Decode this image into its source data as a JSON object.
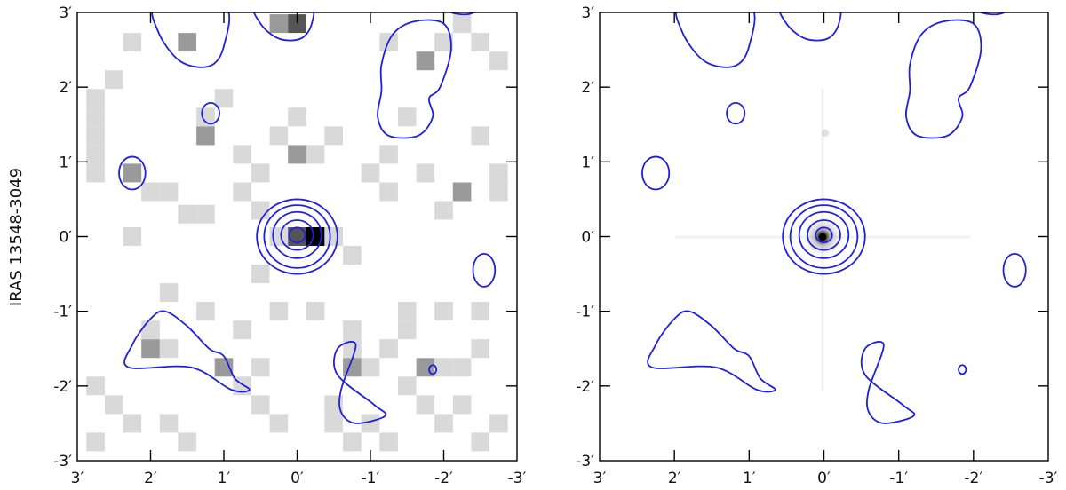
{
  "chart_data": {
    "type": "heatmap",
    "row_label": "IRAS 13548-3049",
    "axis_range_arcmin": [
      3,
      -3
    ],
    "ticks": [
      {
        "value": 3,
        "label": "3′"
      },
      {
        "value": 2,
        "label": "2′"
      },
      {
        "value": 1,
        "label": "1′"
      },
      {
        "value": 0,
        "label": "0′"
      },
      {
        "value": -1,
        "label": "-1′"
      },
      {
        "value": -2,
        "label": "-2′"
      },
      {
        "value": -3,
        "label": "-3′"
      }
    ],
    "contour_color": "#1f1fe0",
    "panels": [
      {
        "name": "left",
        "image": "binned-counts",
        "pixel_size_arcmin": 0.25,
        "pixels": [
          {
            "x": 2.25,
            "y": 2.6,
            "level": 1
          },
          {
            "x": 1.5,
            "y": 2.6,
            "level": 2
          },
          {
            "x": 0.25,
            "y": 2.85,
            "level": 2
          },
          {
            "x": 0.0,
            "y": 2.85,
            "level": 3
          },
          {
            "x": -1.25,
            "y": 2.6,
            "level": 1
          },
          {
            "x": -1.75,
            "y": 2.35,
            "level": 2
          },
          {
            "x": -2.0,
            "y": 2.6,
            "level": 1
          },
          {
            "x": -2.25,
            "y": 2.85,
            "level": 1
          },
          {
            "x": -2.75,
            "y": 2.35,
            "level": 1
          },
          {
            "x": -2.5,
            "y": 2.6,
            "level": 1
          },
          {
            "x": 2.75,
            "y": 1.85,
            "level": 1
          },
          {
            "x": 2.75,
            "y": 1.6,
            "level": 1
          },
          {
            "x": 2.75,
            "y": 1.35,
            "level": 1
          },
          {
            "x": 2.75,
            "y": 1.1,
            "level": 1
          },
          {
            "x": 2.75,
            "y": 0.85,
            "level": 1
          },
          {
            "x": 2.5,
            "y": 2.1,
            "level": 1
          },
          {
            "x": 1.0,
            "y": 1.85,
            "level": 1
          },
          {
            "x": 1.25,
            "y": 1.6,
            "level": 1
          },
          {
            "x": 1.25,
            "y": 1.35,
            "level": 2
          },
          {
            "x": 0.75,
            "y": 1.1,
            "level": 1
          },
          {
            "x": 0.25,
            "y": 1.35,
            "level": 1
          },
          {
            "x": 0.0,
            "y": 1.6,
            "level": 1
          },
          {
            "x": -0.25,
            "y": 1.1,
            "level": 1
          },
          {
            "x": -0.5,
            "y": 1.35,
            "level": 1
          },
          {
            "x": 0.0,
            "y": 1.1,
            "level": 2
          },
          {
            "x": 0.5,
            "y": 0.85,
            "level": 1
          },
          {
            "x": 1.75,
            "y": 0.6,
            "level": 1
          },
          {
            "x": 1.5,
            "y": 0.3,
            "level": 1
          },
          {
            "x": 1.25,
            "y": 0.3,
            "level": 1
          },
          {
            "x": 0.75,
            "y": 0.6,
            "level": 1
          },
          {
            "x": 0.5,
            "y": 0.35,
            "level": 1
          },
          {
            "x": 2.25,
            "y": 0.85,
            "level": 2
          },
          {
            "x": 2.0,
            "y": 0.6,
            "level": 1
          },
          {
            "x": 2.25,
            "y": 0.0,
            "level": 1
          },
          {
            "x": 0.25,
            "y": 0.0,
            "level": 1
          },
          {
            "x": 0.0,
            "y": 0.0,
            "level": 3
          },
          {
            "x": -0.25,
            "y": 0.0,
            "level": 4
          },
          {
            "x": -0.5,
            "y": 0.0,
            "level": 1
          },
          {
            "x": 0.5,
            "y": -0.5,
            "level": 1
          },
          {
            "x": -0.75,
            "y": -0.25,
            "level": 1
          },
          {
            "x": -1.25,
            "y": 0.6,
            "level": 1
          },
          {
            "x": -1.0,
            "y": 0.85,
            "level": 1
          },
          {
            "x": -1.75,
            "y": 0.85,
            "level": 1
          },
          {
            "x": -2.25,
            "y": 0.6,
            "level": 2
          },
          {
            "x": -2.0,
            "y": 0.35,
            "level": 1
          },
          {
            "x": -2.75,
            "y": 0.85,
            "level": 1
          },
          {
            "x": -2.75,
            "y": 0.6,
            "level": 1
          },
          {
            "x": -1.5,
            "y": 1.6,
            "level": 1
          },
          {
            "x": -2.5,
            "y": 1.35,
            "level": 1
          },
          {
            "x": -1.25,
            "y": 1.1,
            "level": 1
          },
          {
            "x": 1.75,
            "y": -0.75,
            "level": 1
          },
          {
            "x": 1.25,
            "y": -1.0,
            "level": 1
          },
          {
            "x": 0.75,
            "y": -1.25,
            "level": 1
          },
          {
            "x": 0.25,
            "y": -1.0,
            "level": 1
          },
          {
            "x": -0.25,
            "y": -1.0,
            "level": 1
          },
          {
            "x": -0.75,
            "y": -1.25,
            "level": 1
          },
          {
            "x": -1.5,
            "y": -1.0,
            "level": 1
          },
          {
            "x": -1.5,
            "y": -1.25,
            "level": 1
          },
          {
            "x": -2.0,
            "y": -1.0,
            "level": 1
          },
          {
            "x": -2.5,
            "y": -1.0,
            "level": 1
          },
          {
            "x": 2.0,
            "y": -1.25,
            "level": 1
          },
          {
            "x": 1.75,
            "y": -1.5,
            "level": 1
          },
          {
            "x": 2.0,
            "y": -1.5,
            "level": 2
          },
          {
            "x": 1.0,
            "y": -1.75,
            "level": 2
          },
          {
            "x": 0.75,
            "y": -2.0,
            "level": 1
          },
          {
            "x": 0.5,
            "y": -1.75,
            "level": 1
          },
          {
            "x": -0.75,
            "y": -1.5,
            "level": 1
          },
          {
            "x": -1.0,
            "y": -1.75,
            "level": 1
          },
          {
            "x": -0.75,
            "y": -1.75,
            "level": 2
          },
          {
            "x": -1.25,
            "y": -1.5,
            "level": 1
          },
          {
            "x": -1.75,
            "y": -1.75,
            "level": 2
          },
          {
            "x": -1.5,
            "y": -2.0,
            "level": 1
          },
          {
            "x": -2.0,
            "y": -1.75,
            "level": 1
          },
          {
            "x": -2.5,
            "y": -1.5,
            "level": 1
          },
          {
            "x": -2.25,
            "y": -1.75,
            "level": 1
          },
          {
            "x": 2.75,
            "y": -2.0,
            "level": 1
          },
          {
            "x": 2.5,
            "y": -2.25,
            "level": 1
          },
          {
            "x": 2.25,
            "y": -2.5,
            "level": 1
          },
          {
            "x": 2.75,
            "y": -2.75,
            "level": 1
          },
          {
            "x": 1.75,
            "y": -2.5,
            "level": 1
          },
          {
            "x": 1.5,
            "y": -2.75,
            "level": 1
          },
          {
            "x": 0.5,
            "y": -2.25,
            "level": 1
          },
          {
            "x": 0.25,
            "y": -2.5,
            "level": 1
          },
          {
            "x": -0.5,
            "y": -2.25,
            "level": 1
          },
          {
            "x": -0.5,
            "y": -2.5,
            "level": 1
          },
          {
            "x": -0.75,
            "y": -2.75,
            "level": 1
          },
          {
            "x": -1.0,
            "y": -2.5,
            "level": 1
          },
          {
            "x": -1.25,
            "y": -2.75,
            "level": 1
          },
          {
            "x": -1.75,
            "y": -2.25,
            "level": 1
          },
          {
            "x": -2.0,
            "y": -2.5,
            "level": 1
          },
          {
            "x": -2.25,
            "y": -2.25,
            "level": 1
          },
          {
            "x": -2.5,
            "y": -2.75,
            "level": 1
          },
          {
            "x": -2.75,
            "y": -2.5,
            "level": 1
          }
        ]
      },
      {
        "name": "right",
        "image": "smooth-point-source",
        "source": {
          "x": 0.0,
          "y": 0.0
        }
      }
    ],
    "contours": {
      "source_rings": [
        {
          "cx": 0.0,
          "cy": 0.0,
          "rx": 0.55,
          "ry": 0.5
        },
        {
          "cx": 0.0,
          "cy": 0.0,
          "rx": 0.45,
          "ry": 0.42
        },
        {
          "cx": 0.0,
          "cy": 0.02,
          "rx": 0.33,
          "ry": 0.31
        },
        {
          "cx": 0.0,
          "cy": 0.02,
          "rx": 0.22,
          "ry": 0.2
        },
        {
          "cx": 0.0,
          "cy": 0.02,
          "rx": 0.11,
          "ry": 0.1
        }
      ],
      "small_ellipses": [
        {
          "cx": 1.18,
          "cy": 1.65,
          "rx": 0.12,
          "ry": 0.14
        },
        {
          "cx": 2.25,
          "cy": 0.85,
          "rx": 0.18,
          "ry": 0.22
        },
        {
          "cx": -2.55,
          "cy": -0.45,
          "rx": 0.15,
          "ry": 0.22
        },
        {
          "cx": -1.85,
          "cy": -1.78,
          "rx": 0.05,
          "ry": 0.06
        }
      ],
      "blobs": [
        [
          [
            1.9,
            3.1
          ],
          [
            1.9,
            2.75
          ],
          [
            1.6,
            2.35
          ],
          [
            1.2,
            2.28
          ],
          [
            1.0,
            2.55
          ],
          [
            1.0,
            3.1
          ]
        ],
        [
          [
            0.55,
            3.1
          ],
          [
            0.5,
            2.85
          ],
          [
            0.25,
            2.65
          ],
          [
            -0.05,
            2.65
          ],
          [
            -0.2,
            2.85
          ],
          [
            -0.15,
            3.1
          ]
        ],
        [
          [
            -2.0,
            3.1
          ],
          [
            -2.1,
            3.0
          ],
          [
            -2.35,
            2.98
          ],
          [
            -2.55,
            3.1
          ]
        ],
        [
          [
            -1.3,
            2.7
          ],
          [
            -1.6,
            2.88
          ],
          [
            -2.0,
            2.85
          ],
          [
            -2.1,
            2.5
          ],
          [
            -1.95,
            2.0
          ],
          [
            -1.8,
            1.85
          ],
          [
            -1.85,
            1.6
          ],
          [
            -1.65,
            1.35
          ],
          [
            -1.25,
            1.35
          ],
          [
            -1.1,
            1.6
          ],
          [
            -1.15,
            1.95
          ],
          [
            -1.15,
            2.3
          ]
        ],
        [
          [
            1.8,
            -1.0
          ],
          [
            1.5,
            -1.2
          ],
          [
            1.2,
            -1.5
          ],
          [
            1.0,
            -1.6
          ],
          [
            0.85,
            -1.9
          ],
          [
            0.65,
            -2.05
          ],
          [
            0.9,
            -2.05
          ],
          [
            1.45,
            -1.75
          ],
          [
            2.3,
            -1.75
          ],
          [
            2.25,
            -1.45
          ],
          [
            2.0,
            -1.1
          ]
        ],
        [
          [
            -0.8,
            -1.45
          ],
          [
            -0.55,
            -1.5
          ],
          [
            -0.55,
            -1.85
          ],
          [
            -1.05,
            -2.25
          ],
          [
            -1.2,
            -2.4
          ],
          [
            -0.8,
            -2.5
          ],
          [
            -0.6,
            -2.35
          ],
          [
            -0.6,
            -2.05
          ]
        ]
      ]
    }
  }
}
